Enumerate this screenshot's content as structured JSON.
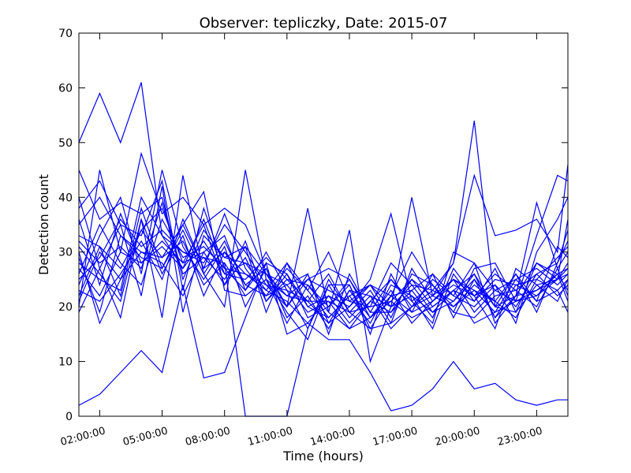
{
  "chart_data": {
    "type": "line",
    "title": "Observer: tepliczky, Date: 2015-07",
    "xlabel": "Time (hours)",
    "ylabel": "Detection count",
    "ylim": [
      0,
      70
    ],
    "yticks": [
      0,
      10,
      20,
      30,
      40,
      50,
      60,
      70
    ],
    "xlim": [
      1,
      24.5
    ],
    "xticks": [
      {
        "value": 2,
        "label": "02:00:00"
      },
      {
        "value": 5,
        "label": "05:00:00"
      },
      {
        "value": 8,
        "label": "08:00:00"
      },
      {
        "value": 11,
        "label": "11:00:00"
      },
      {
        "value": 14,
        "label": "14:00:00"
      },
      {
        "value": 17,
        "label": "17:00:00"
      },
      {
        "value": 20,
        "label": "20:00:00"
      },
      {
        "value": 23,
        "label": "23:00:00"
      }
    ],
    "grid": false,
    "line_color": "#0000ff",
    "x": [
      1,
      2,
      3,
      4,
      5,
      6,
      7,
      8,
      9,
      10,
      11,
      12,
      13,
      14,
      15,
      16,
      17,
      18,
      19,
      20,
      21,
      22,
      23,
      24,
      24.5
    ],
    "series": [
      {
        "values": [
          2,
          4,
          8,
          12,
          8,
          24,
          7,
          8,
          18,
          28,
          15,
          17,
          14,
          14,
          8,
          1,
          2,
          5,
          10,
          5,
          6,
          3,
          2,
          3,
          3
        ]
      },
      {
        "values": [
          50,
          59,
          50,
          61,
          33,
          30,
          29,
          28,
          0,
          0,
          0,
          16,
          24,
          24,
          16,
          17,
          20,
          23,
          28,
          54,
          20,
          22,
          23,
          25,
          26
        ]
      },
      {
        "values": [
          20,
          45,
          30,
          48,
          37,
          40,
          35,
          38,
          35,
          26,
          20,
          38,
          19,
          34,
          10,
          20,
          40,
          22,
          28,
          44,
          33,
          34,
          36,
          30,
          46
        ]
      },
      {
        "values": [
          19,
          27,
          18,
          36,
          18,
          44,
          26,
          20,
          45,
          25,
          22,
          21,
          17,
          20,
          25,
          37,
          21,
          17,
          30,
          28,
          17,
          22,
          39,
          27,
          22
        ]
      },
      {
        "values": [
          30,
          17,
          25,
          34,
          38,
          28,
          30,
          33,
          23,
          28,
          26,
          20,
          18,
          22,
          24,
          22,
          30,
          24,
          19,
          27,
          28,
          21,
          33,
          44,
          43
        ]
      },
      {
        "values": [
          38,
          43,
          35,
          22,
          42,
          19,
          33,
          29,
          28,
          26,
          22,
          25,
          27,
          25,
          18,
          21,
          25,
          20,
          23,
          17,
          19,
          21,
          22,
          25,
          36
        ]
      },
      {
        "values": [
          45,
          36,
          39,
          37,
          40,
          25,
          34,
          29,
          31,
          19,
          28,
          23,
          30,
          21,
          20,
          28,
          24,
          19,
          21,
          26,
          18,
          24,
          25,
          29,
          31
        ]
      },
      {
        "values": [
          25,
          29,
          36,
          31,
          34,
          30,
          28,
          35,
          30,
          24,
          23,
          21,
          21,
          19,
          16,
          22,
          23,
          26,
          22,
          20,
          24,
          17,
          30,
          36,
          40
        ]
      },
      {
        "values": [
          29,
          19,
          33,
          29,
          27,
          35,
          41,
          23,
          22,
          25,
          19,
          14,
          24,
          18,
          22,
          16,
          20,
          22,
          25,
          23,
          21,
          26,
          19,
          28,
          34
        ]
      },
      {
        "values": [
          33,
          31,
          27,
          34,
          29,
          35,
          27,
          30,
          24,
          22,
          24,
          26,
          15,
          26,
          19,
          19,
          23,
          18,
          27,
          22,
          16,
          27,
          24,
          21,
          25
        ]
      },
      {
        "values": [
          28,
          25,
          23,
          40,
          33,
          27,
          32,
          26,
          28,
          23,
          21,
          17,
          22,
          17,
          21,
          25,
          21,
          24,
          20,
          24,
          21,
          18,
          25,
          23,
          19
        ]
      },
      {
        "values": [
          35,
          40,
          33,
          30,
          28,
          22,
          30,
          24,
          29,
          21,
          26,
          18,
          20,
          24,
          15,
          26,
          19,
          21,
          25,
          19,
          23,
          25,
          21,
          31,
          29
        ]
      },
      {
        "values": [
          24,
          33,
          40,
          26,
          45,
          31,
          25,
          31,
          20,
          27,
          18,
          22,
          16,
          23,
          22,
          20,
          24,
          23,
          21,
          25,
          18,
          22,
          28,
          26,
          27
        ]
      },
      {
        "values": [
          27,
          22,
          30,
          28,
          31,
          27,
          36,
          26,
          25,
          29,
          25,
          24,
          19,
          16,
          18,
          23,
          17,
          21,
          24,
          22,
          24,
          20,
          26,
          22,
          24
        ]
      },
      {
        "values": [
          31,
          26,
          21,
          36,
          26,
          33,
          22,
          30,
          26,
          24,
          20,
          25,
          23,
          21,
          24,
          18,
          26,
          24,
          19,
          18,
          22,
          23,
          20,
          27,
          30
        ]
      },
      {
        "values": [
          26,
          35,
          28,
          24,
          36,
          29,
          31,
          27,
          23,
          30,
          23,
          16,
          25,
          19,
          20,
          21,
          18,
          20,
          23,
          26,
          20,
          19,
          24,
          25,
          28
        ]
      },
      {
        "values": [
          23,
          21,
          26,
          32,
          25,
          36,
          27,
          37,
          27,
          22,
          27,
          23,
          18,
          22,
          17,
          24,
          22,
          16,
          26,
          21,
          25,
          24,
          22,
          26,
          23
        ]
      },
      {
        "values": [
          32,
          28,
          31,
          27,
          39,
          26,
          29,
          25,
          31,
          26,
          24,
          19,
          21,
          16,
          21,
          19,
          25,
          22,
          20,
          23,
          19,
          25,
          27,
          24,
          26
        ]
      },
      {
        "values": [
          21,
          30,
          25,
          30,
          29,
          32,
          24,
          28,
          22,
          25,
          17,
          24,
          20,
          25,
          19,
          25,
          20,
          25,
          22,
          28,
          23,
          21,
          23,
          26,
          21
        ]
      },
      {
        "values": [
          36,
          24,
          37,
          28,
          32,
          28,
          35,
          24,
          32,
          21,
          25,
          21,
          26,
          19,
          23,
          17,
          27,
          21,
          25,
          22,
          26,
          23,
          26,
          28,
          32
        ]
      },
      {
        "values": [
          22,
          31,
          22,
          38,
          27,
          34,
          26,
          32,
          24,
          27,
          20,
          26,
          17,
          23,
          18,
          22,
          19,
          26,
          18,
          25,
          20,
          26,
          21,
          23,
          25
        ]
      },
      {
        "values": [
          40,
          27,
          35,
          33,
          43,
          23,
          38,
          27,
          26,
          23,
          28,
          20,
          22,
          20,
          24,
          20,
          22,
          19,
          23,
          21,
          27,
          19,
          28,
          25,
          27
        ]
      }
    ]
  }
}
